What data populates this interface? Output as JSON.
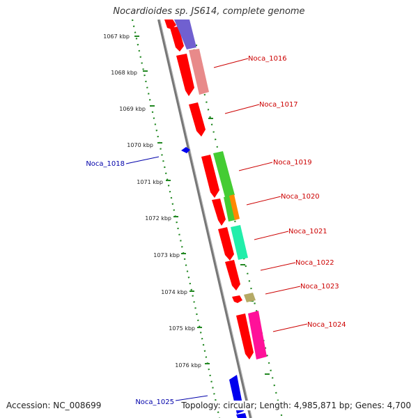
{
  "title": "Nocardioides sp. JS614, complete genome",
  "accession": "Accession: NC_008699",
  "summary": "Topology: circular; Length: 4,985,871 bp; Genes: 4,700",
  "colors": {
    "cds": "#ff0000",
    "reverse_cds": "#0000ff",
    "label_forward": "#cc0000",
    "label_reverse": "#0000aa",
    "tick_line": "#228822",
    "backbone": "#888888"
  },
  "ticks": [
    "1067 kbp",
    "1068 kbp",
    "1069 kbp",
    "1070 kbp",
    "1071 kbp",
    "1072 kbp",
    "1073 kbp",
    "1074 kbp",
    "1075 kbp",
    "1076 kbp"
  ],
  "genes": [
    {
      "id": "g-top",
      "label": "",
      "strand": "+",
      "start_kbp": 1066.6,
      "end_kbp": 1066.9
    },
    {
      "id": "noca-1016",
      "label": "Noca_1016",
      "strand": "+",
      "start_kbp": 1067.3,
      "end_kbp": 1068.2
    },
    {
      "id": "noca-1017",
      "label": "Noca_1017",
      "strand": "+",
      "start_kbp": 1068.7,
      "end_kbp": 1069.5
    },
    {
      "id": "noca-1018",
      "label": "Noca_1018",
      "strand": "-",
      "start_kbp": 1070.1,
      "end_kbp": 1070.2
    },
    {
      "id": "noca-1019",
      "label": "Noca_1019",
      "strand": "+",
      "start_kbp": 1070.3,
      "end_kbp": 1071.5
    },
    {
      "id": "noca-1020",
      "label": "Noca_1020",
      "strand": "+",
      "start_kbp": 1071.5,
      "end_kbp": 1072.2
    },
    {
      "id": "noca-1021",
      "label": "Noca_1021",
      "strand": "+",
      "start_kbp": 1072.3,
      "end_kbp": 1073.1
    },
    {
      "id": "noca-1022",
      "label": "Noca_1022",
      "strand": "+",
      "start_kbp": 1073.2,
      "end_kbp": 1073.9
    },
    {
      "id": "noca-1023",
      "label": "Noca_1023",
      "strand": "+",
      "start_kbp": 1074.1,
      "end_kbp": 1074.4
    },
    {
      "id": "noca-1024",
      "label": "Noca_1024",
      "strand": "+",
      "start_kbp": 1074.6,
      "end_kbp": 1075.8
    },
    {
      "id": "noca-1025",
      "label": "Noca_1025",
      "strand": "-",
      "start_kbp": 1076.3,
      "end_kbp": 1077.0
    }
  ]
}
